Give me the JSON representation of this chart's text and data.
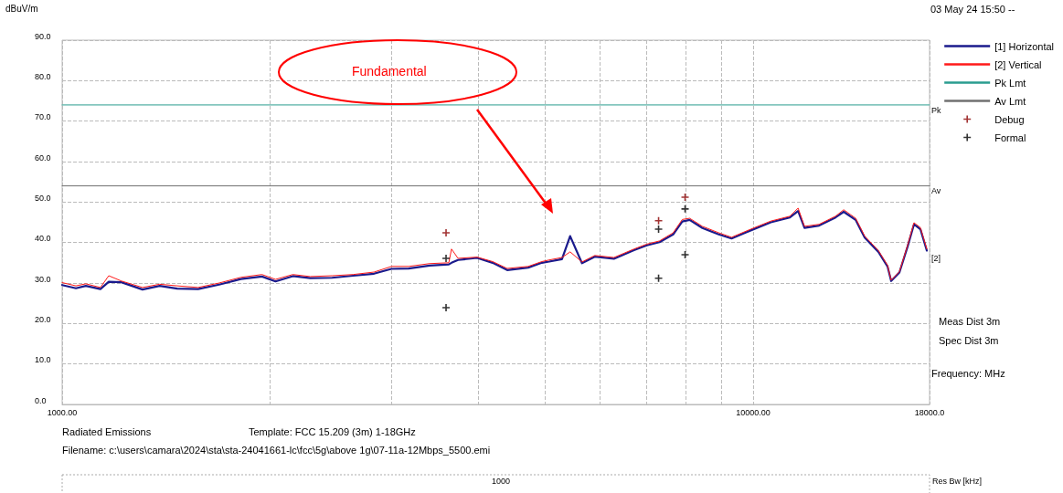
{
  "chart_data": {
    "type": "line",
    "ylabel": "dBuV/m",
    "xlabel": "Frequency: MHz",
    "annotations": [
      "03 May 24 15:50 --",
      "Fundamental",
      "Meas Dist 3m",
      "Spec Dist 3m",
      "Radiated Emissions",
      "Template: FCC 15.209 (3m) 1-18GHz",
      "Filename: c:\\users\\camara\\2024\\sta\\sta-24041661-lc\\fcc\\5g\\above 1g\\07-11a-12Mbps_5500.emi",
      "1000",
      "Res Bw [kHz]",
      "Pk",
      "Av",
      "[2]"
    ],
    "series": [
      {
        "name": "[1] Horizontal",
        "color": "#1a1a8c",
        "x": [
          1000,
          1047,
          1082,
          1136,
          1168,
          1218,
          1307,
          1384,
          1467,
          1573,
          1687,
          1814,
          1946,
          2036,
          2157,
          2286,
          2458,
          2636,
          2827,
          2996,
          3173,
          3403,
          3627,
          3660,
          3740,
          3986,
          4197,
          4406,
          4725,
          4946,
          5068,
          5288,
          5434,
          5653,
          5899,
          6287,
          6723,
          7015,
          7319,
          7660,
          7897,
          8092,
          8444,
          8918,
          9306,
          9919,
          10605,
          11303,
          11616,
          11866,
          12458,
          13158,
          13522,
          14069,
          14503,
          15180,
          15647,
          15838,
          16279,
          16729,
          17090,
          17459,
          17837
        ],
        "values": [
          29.5,
          28.7,
          29.3,
          28.5,
          30.3,
          30.2,
          28.4,
          29.3,
          28.6,
          28.5,
          29.6,
          31.0,
          31.6,
          30.4,
          31.7,
          31.2,
          31.3,
          31.8,
          32.3,
          33.5,
          33.6,
          34.3,
          34.6,
          35.0,
          35.7,
          36.2,
          35.0,
          33.2,
          33.8,
          35.0,
          35.3,
          35.9,
          41.6,
          34.9,
          36.5,
          36.0,
          38.1,
          39.3,
          40.1,
          42.0,
          45.2,
          45.6,
          43.6,
          42.0,
          41.0,
          43.0,
          45.0,
          46.2,
          47.8,
          43.6,
          44.2,
          46.2,
          47.6,
          45.6,
          41.2,
          37.7,
          34.1,
          30.5,
          32.6,
          39.0,
          44.5,
          43.3,
          38.0
        ]
      },
      {
        "name": "[2] Vertical",
        "color": "#ff1a1a",
        "x": [
          1000,
          1047,
          1082,
          1136,
          1168,
          1218,
          1307,
          1384,
          1467,
          1573,
          1687,
          1814,
          1946,
          2036,
          2157,
          2286,
          2458,
          2636,
          2827,
          2996,
          3173,
          3403,
          3627,
          3660,
          3740,
          3986,
          4197,
          4406,
          4725,
          4946,
          5068,
          5288,
          5434,
          5653,
          5899,
          6287,
          6723,
          7015,
          7319,
          7660,
          7897,
          8092,
          8444,
          8918,
          9306,
          9919,
          10605,
          11303,
          11616,
          11866,
          12458,
          13158,
          13522,
          14069,
          14503,
          15180,
          15647,
          15838,
          16279,
          16729,
          17090,
          17459,
          17837
        ],
        "values": [
          30.1,
          29.3,
          29.8,
          28.9,
          31.8,
          30.5,
          28.9,
          29.7,
          29.3,
          28.9,
          30.0,
          31.4,
          32.1,
          30.9,
          32.1,
          31.6,
          31.8,
          32.1,
          32.7,
          34.1,
          34.1,
          34.8,
          35.0,
          38.4,
          36.1,
          36.4,
          35.3,
          33.6,
          34.1,
          35.3,
          35.7,
          36.3,
          37.7,
          35.2,
          36.8,
          36.3,
          38.4,
          39.6,
          40.4,
          42.4,
          45.7,
          46.0,
          44.0,
          42.4,
          41.3,
          43.3,
          45.3,
          46.5,
          48.5,
          44.0,
          44.5,
          46.5,
          48.1,
          46.0,
          41.6,
          38.0,
          34.4,
          30.7,
          32.8,
          39.3,
          44.9,
          43.7,
          38.4
        ]
      },
      {
        "name": "Pk Lmt",
        "color": "#2a9d8f",
        "x": [
          1000,
          18000
        ],
        "values": [
          74,
          74
        ]
      },
      {
        "name": "Av Lmt",
        "color": "#707070",
        "x": [
          1000,
          18000
        ],
        "values": [
          54,
          54
        ]
      },
      {
        "name": "Debug",
        "type": "scatter",
        "marker": "cross",
        "color": "#8b0000",
        "x": [
          3594,
          7297,
          7970
        ],
        "values": [
          42.4,
          45.4,
          51.2
        ]
      },
      {
        "name": "Formal",
        "type": "scatter",
        "marker": "cross",
        "color": "#000000",
        "x": [
          3594,
          3594,
          7297,
          7297,
          7970,
          7970
        ],
        "values": [
          36.1,
          23.9,
          43.3,
          31.2,
          48.3,
          37.0
        ]
      }
    ],
    "xlim": [
      1000,
      18000
    ],
    "xticks": [
      {
        "value": 1000,
        "label": "1000.00"
      },
      {
        "value": 2000,
        "label": null
      },
      {
        "value": 3000,
        "label": null
      },
      {
        "value": 4000,
        "label": null
      },
      {
        "value": 5000,
        "label": null
      },
      {
        "value": 6000,
        "label": null
      },
      {
        "value": 7000,
        "label": null
      },
      {
        "value": 8000,
        "label": null
      },
      {
        "value": 9000,
        "label": null
      },
      {
        "value": 10000,
        "label": "10000.00"
      },
      {
        "value": 18000,
        "label": "18000.0"
      }
    ],
    "ylim": [
      0,
      90
    ],
    "yticks": [
      {
        "value": 0,
        "label": "0.0"
      },
      {
        "value": 10,
        "label": "10.0"
      },
      {
        "value": 20,
        "label": "20.0"
      },
      {
        "value": 30,
        "label": "30.0"
      },
      {
        "value": 40,
        "label": "40.0"
      },
      {
        "value": 50,
        "label": "50.0"
      },
      {
        "value": 60,
        "label": "60.0"
      },
      {
        "value": 70,
        "label": "70.0"
      },
      {
        "value": 80,
        "label": "80.0"
      },
      {
        "value": 90,
        "label": "90.0"
      }
    ],
    "log": "x",
    "grid": true,
    "legend": "right",
    "marker": "none",
    "line_style": "solid"
  }
}
